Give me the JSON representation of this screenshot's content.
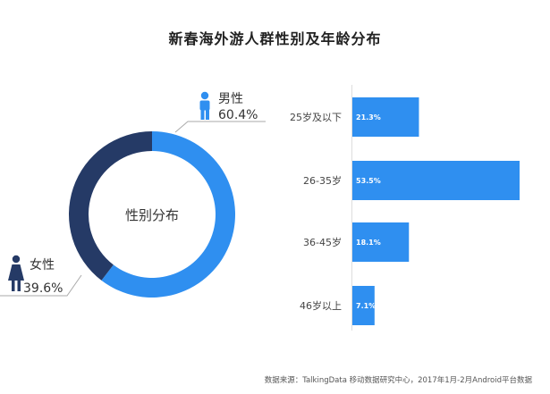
{
  "title": "新春海外游人群性别及年龄分布",
  "source": "数据来源：TalkingData 移动数据研究中心，2017年1月-2月Android平台数据",
  "colors": {
    "male": "#2f8ff0",
    "female": "#253a66",
    "bar": "#2f8ff0",
    "bar_label": "#ffffff",
    "leader": "#aaaaaa",
    "axis": "#dddddd",
    "male_icon": "#2f8ff0",
    "female_icon": "#253a66"
  },
  "chart_data": [
    {
      "type": "pie",
      "style": "donut",
      "center_label": "性别分布",
      "series": [
        {
          "name": "男性",
          "value": 60.4,
          "label": "60.4%",
          "icon": "male-person-icon"
        },
        {
          "name": "女性",
          "value": 39.6,
          "label": "39.6%",
          "icon": "female-person-icon"
        }
      ]
    },
    {
      "type": "bar",
      "orientation": "horizontal",
      "categories": [
        "25岁及以下",
        "26-35岁",
        "36-45岁",
        "46岁以上"
      ],
      "values": [
        21.3,
        53.5,
        18.1,
        7.1
      ],
      "value_labels": [
        "21.3%",
        "53.5%",
        "18.1%",
        "7.1%"
      ],
      "unit": "%"
    }
  ]
}
